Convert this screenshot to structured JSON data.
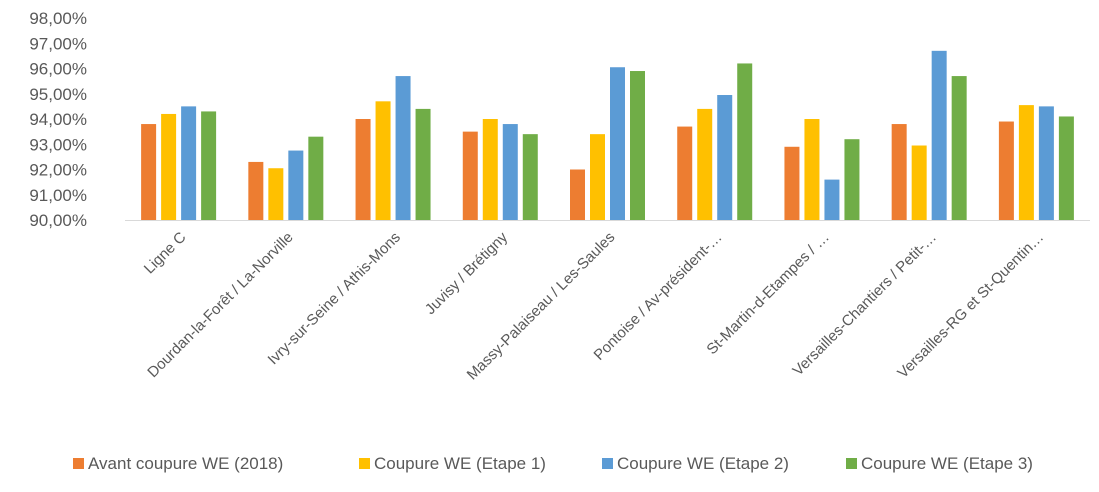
{
  "chart_data": {
    "type": "bar",
    "categories": [
      "Ligne C",
      "Dourdan-la-Forêt / La-Norville",
      "Ivry-sur-Seine / Athis-Mons",
      "Juvisy / Brétigny",
      "Massy-Palaiseau / Les-Saules",
      "Pontoise / Av-président-…",
      "St-Martin-d-Etampes / …",
      "Versailles-Chantiers / Petit-…",
      "Versailles-RG et St-Quentin…"
    ],
    "series": [
      {
        "name": "Avant coupure WE (2018)",
        "color": "#ED7D31",
        "values": [
          93.8,
          92.3,
          94.0,
          93.5,
          92.0,
          93.7,
          92.9,
          93.8,
          93.9
        ]
      },
      {
        "name": "Coupure WE (Etape 1)",
        "color": "#FFC000",
        "values": [
          94.2,
          92.05,
          94.7,
          94.0,
          93.4,
          94.4,
          94.0,
          92.95,
          94.55
        ]
      },
      {
        "name": "Coupure WE (Etape 2)",
        "color": "#5B9BD5",
        "values": [
          94.5,
          92.75,
          95.7,
          93.8,
          96.05,
          94.95,
          91.6,
          96.7,
          94.5
        ]
      },
      {
        "name": "Coupure WE (Etape 3)",
        "color": "#70AD47",
        "values": [
          94.3,
          93.3,
          94.4,
          93.4,
          95.9,
          96.2,
          93.2,
          95.7,
          94.1
        ]
      }
    ],
    "ylim": [
      90,
      98
    ],
    "ytick_step": 1,
    "ytick_labels": [
      "90,00%",
      "91,00%",
      "92,00%",
      "93,00%",
      "94,00%",
      "95,00%",
      "96,00%",
      "97,00%",
      "98,00%"
    ],
    "title": "",
    "xlabel": "",
    "ylabel": "",
    "grid": false,
    "legend_position": "bottom"
  }
}
